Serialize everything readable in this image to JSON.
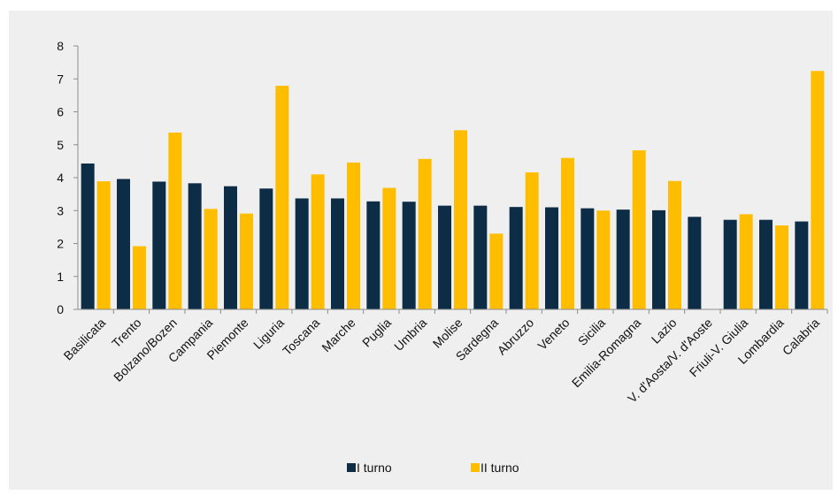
{
  "chart_data": {
    "type": "bar",
    "title": "",
    "xlabel": "",
    "ylabel": "",
    "ylim": [
      0,
      8
    ],
    "yticks": [
      0,
      1,
      2,
      3,
      4,
      5,
      6,
      7,
      8
    ],
    "grid": false,
    "legend_position": "bottom",
    "categories": [
      "Basilicata",
      "Trento",
      "Bolzano/Bozen",
      "Campania",
      "Piemonte",
      "Liguria",
      "Toscana",
      "Marche",
      "Puglia",
      "Umbria",
      "Molise",
      "Sardegna",
      "Abruzzo",
      "Veneto",
      "Sicilia",
      "Emilia-Romagna",
      "Lazio",
      "V. d'Aosta/V. d'Aoste",
      "Friuli-V. Giulia",
      "Lombardia",
      "Calabria"
    ],
    "series": [
      {
        "name": "I turno",
        "color": "#0d2c45",
        "values": [
          4.43,
          3.96,
          3.88,
          3.83,
          3.74,
          3.67,
          3.37,
          3.37,
          3.28,
          3.27,
          3.15,
          3.15,
          3.11,
          3.1,
          3.07,
          3.03,
          3.01,
          2.81,
          2.72,
          2.72,
          2.67
        ]
      },
      {
        "name": "II turno",
        "color": "#ffbd00",
        "values": [
          3.89,
          1.92,
          5.37,
          3.05,
          2.91,
          6.79,
          4.1,
          4.46,
          3.69,
          4.57,
          5.44,
          2.3,
          4.16,
          4.6,
          3.0,
          4.83,
          3.9,
          null,
          2.89,
          2.55,
          7.24
        ]
      }
    ]
  }
}
